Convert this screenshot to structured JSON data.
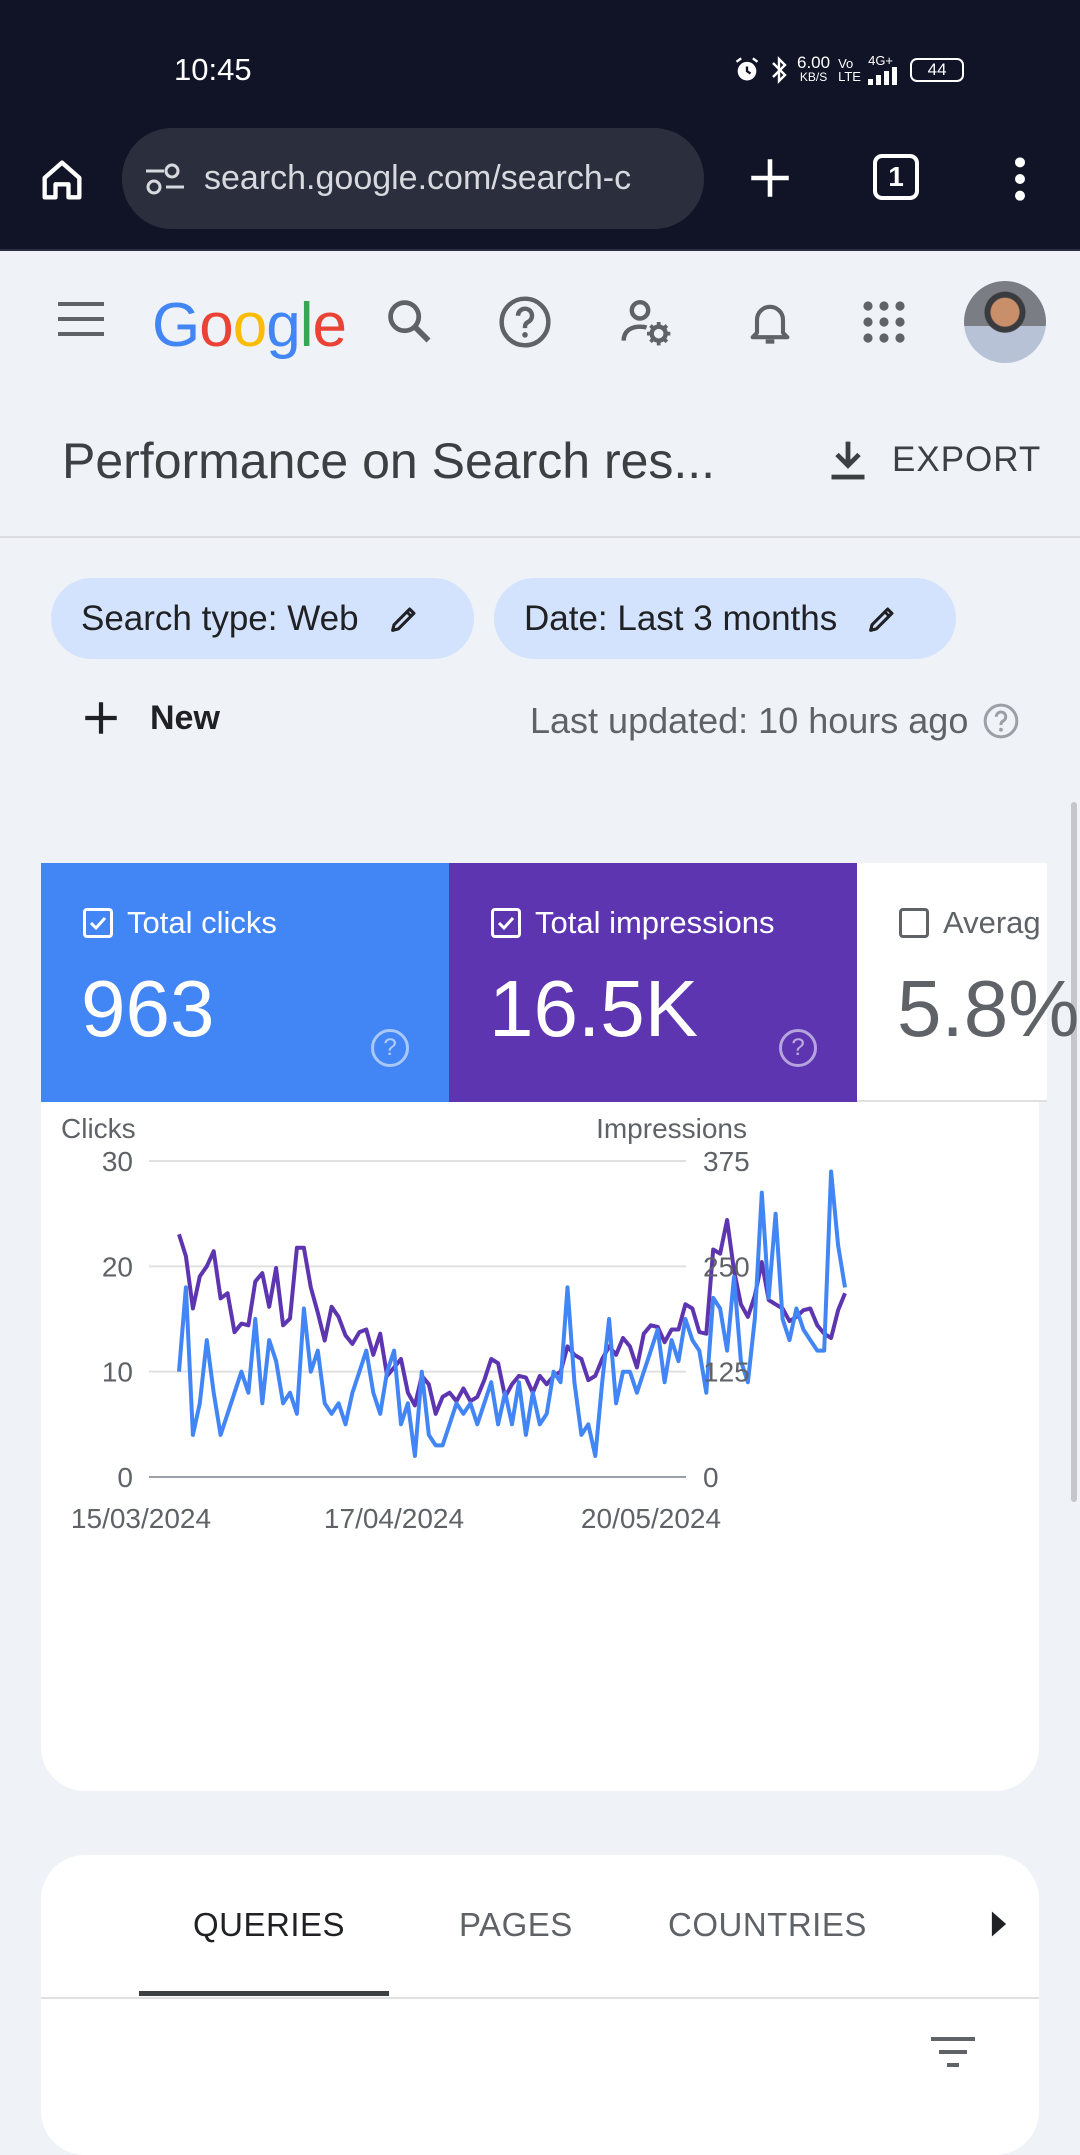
{
  "status_bar": {
    "time": "10:45",
    "net_speed": "6.00",
    "net_unit": "KB/S",
    "volte": "Vo LTE",
    "signal": "4G+",
    "battery": "44"
  },
  "browser": {
    "url": "search.google.com/search-c",
    "tab_count": "1"
  },
  "header": {
    "title": "Performance on Search res...",
    "export_label": "EXPORT"
  },
  "filters": {
    "search_type": "Search type: Web",
    "date": "Date: Last 3 months",
    "new_label": "New",
    "last_updated": "Last updated: 10 hours ago"
  },
  "metrics": {
    "clicks": {
      "label": "Total clicks",
      "value": "963",
      "checked": true,
      "color": "#4285f4"
    },
    "impressions": {
      "label": "Total impressions",
      "value": "16.5K",
      "checked": true,
      "color": "#5e35b1"
    },
    "ctr": {
      "label": "Averag",
      "value": "5.8%",
      "checked": false
    }
  },
  "chart_data": {
    "type": "line",
    "left_axis_label": "Clicks",
    "right_axis_label": "Impressions",
    "left_ticks": [
      "30",
      "20",
      "10",
      "0"
    ],
    "right_ticks": [
      "375",
      "250",
      "125",
      "0"
    ],
    "left_ylim": [
      0,
      30
    ],
    "right_ylim": [
      0,
      375
    ],
    "x_tick_labels": [
      "15/03/2024",
      "17/04/2024",
      "20/05/2024"
    ],
    "grid": true,
    "series": [
      {
        "name": "Clicks",
        "axis": "left",
        "color": "#4285f4",
        "values": [
          10,
          18,
          4,
          7,
          13,
          8,
          4,
          6,
          8,
          10,
          8,
          15,
          7,
          13,
          11,
          7,
          8,
          6,
          16,
          10,
          12,
          7,
          6,
          7,
          5,
          8,
          10,
          12,
          8,
          6,
          10,
          12,
          5,
          7,
          2,
          10,
          4,
          3,
          3,
          5,
          7,
          6,
          7,
          5,
          7,
          9,
          5,
          8,
          5,
          9,
          4,
          8,
          5,
          6,
          10,
          9,
          18,
          9,
          4,
          5,
          2,
          9,
          15,
          7,
          10,
          10,
          8,
          10,
          12,
          14,
          9,
          13,
          11,
          15,
          13,
          12,
          8,
          17,
          16,
          12,
          19,
          11,
          9,
          15,
          27,
          17,
          25,
          15,
          13,
          16,
          14,
          13,
          12,
          12,
          29,
          22,
          18
        ]
      },
      {
        "name": "Impressions",
        "axis": "right",
        "color": "#5e35b1",
        "values": [
          288,
          262,
          200,
          238,
          250,
          268,
          212,
          218,
          172,
          182,
          180,
          232,
          242,
          202,
          248,
          180,
          188,
          272,
          272,
          225,
          195,
          162,
          202,
          190,
          168,
          158,
          172,
          175,
          145,
          170,
          120,
          130,
          140,
          100,
          85,
          120,
          110,
          75,
          95,
          100,
          90,
          105,
          90,
          95,
          115,
          140,
          135,
          95,
          110,
          120,
          118,
          100,
          120,
          110,
          120,
          125,
          155,
          145,
          140,
          115,
          120,
          140,
          155,
          145,
          165,
          155,
          130,
          170,
          180,
          178,
          160,
          175,
          175,
          205,
          200,
          172,
          170,
          270,
          265,
          305,
          245,
          205,
          190,
          215,
          255,
          210,
          205,
          200,
          185,
          190,
          198,
          200,
          180,
          170,
          165,
          198,
          218
        ]
      }
    ]
  },
  "tabs": [
    {
      "label": "QUERIES",
      "active": true
    },
    {
      "label": "PAGES",
      "active": false
    },
    {
      "label": "COUNTRIES",
      "active": false
    }
  ]
}
